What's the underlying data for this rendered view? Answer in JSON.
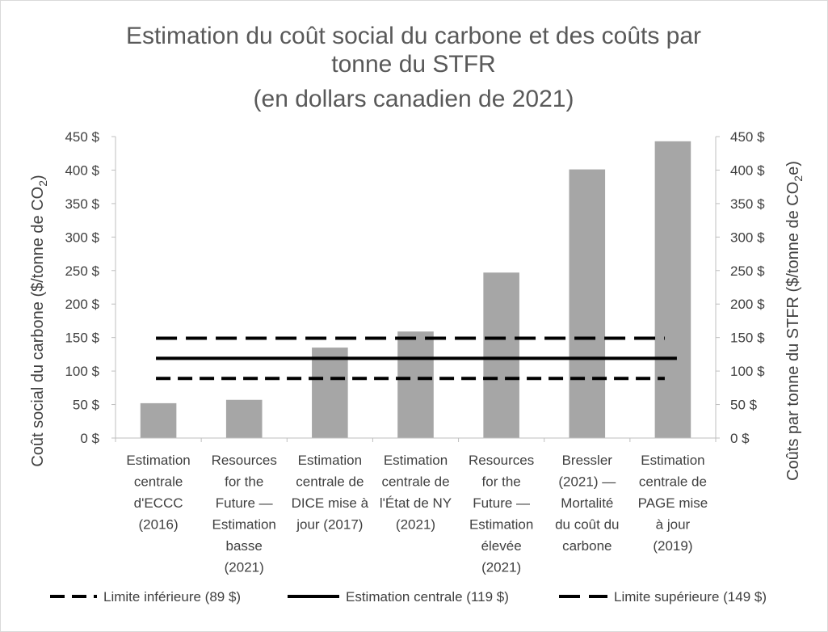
{
  "chart_data": {
    "type": "bar",
    "title_lines": [
      "Estimation du coût social du carbone et des coûts par",
      "tonne du STFR",
      "(en dollars canadien de 2021)"
    ],
    "categories": [
      [
        "Estimation",
        "centrale",
        "d'ECCC",
        "(2016)"
      ],
      [
        "Resources",
        "for the",
        "Future —",
        "Estimation",
        "basse",
        "(2021)"
      ],
      [
        "Estimation",
        "centrale de",
        "DICE mise à",
        "jour (2017)"
      ],
      [
        "Estimation",
        "centrale de",
        "l'État de NY",
        "(2021)"
      ],
      [
        "Resources",
        "for the",
        "Future —",
        "Estimation",
        "élevée",
        "(2021)"
      ],
      [
        "Bressler",
        "(2021) —",
        "Mortalité",
        "du coût du",
        "carbone"
      ],
      [
        "Estimation",
        "centrale de",
        "PAGE mise",
        "à jour",
        "(2019)"
      ]
    ],
    "values": [
      52,
      57,
      135,
      159,
      247,
      401,
      443
    ],
    "bar_color": "#a6a6a6",
    "ylim": [
      0,
      450
    ],
    "y_ticks": [
      0,
      50,
      100,
      150,
      200,
      250,
      300,
      350,
      400,
      450
    ],
    "y_tick_labels": [
      "0 $",
      "50 $",
      "100 $",
      "150 $",
      "200 $",
      "250 $",
      "300 $",
      "350 $",
      "400 $",
      "450 $"
    ],
    "y2_tick_labels": [
      "0 $",
      "50 $",
      "100 $",
      "150 $",
      "200 $",
      "250 $",
      "300 $",
      "350 $",
      "400 $",
      "450 $"
    ],
    "ylabel": {
      "text": "Coût social du carbone  ($/tonne de CO",
      "sub": "2",
      "end": ")"
    },
    "y2label": {
      "text": "Coûts par tonne du STFR ($/tonne de CO",
      "sub": "2",
      "end": "e)"
    },
    "reference_lines": [
      {
        "name": "Limite inférieure (89 $)",
        "value": 89,
        "style": "dashed",
        "color": "#000000"
      },
      {
        "name": "Estimation centrale (119 $)",
        "value": 119,
        "style": "solid",
        "color": "#000000"
      },
      {
        "name": "Limite supérieure (149 $)",
        "value": 149,
        "style": "long-dashed",
        "color": "#000000"
      }
    ],
    "legend_position": "bottom",
    "grid": false
  }
}
